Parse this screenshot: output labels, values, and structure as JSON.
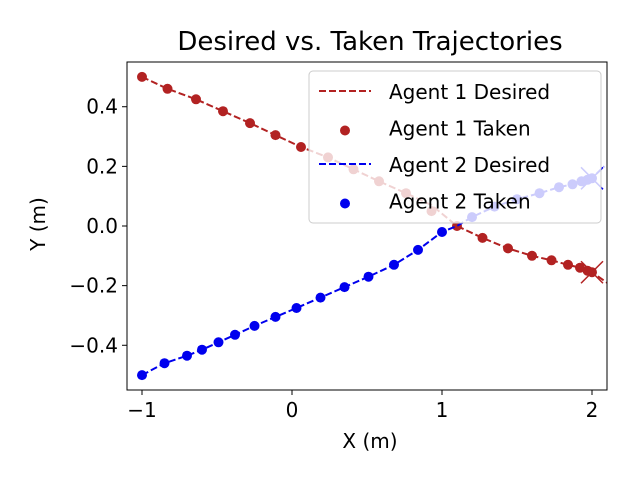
{
  "chart_data": {
    "type": "line",
    "title": "Desired vs. Taken Trajectories",
    "xlabel": "X (m)",
    "ylabel": "Y (m)",
    "xlim": [
      -1.1,
      2.1
    ],
    "ylim": [
      -0.55,
      0.55
    ],
    "xticks": [
      -1,
      0,
      1,
      2
    ],
    "yticks": [
      -0.4,
      -0.2,
      0.0,
      0.2,
      0.4
    ],
    "xtick_labels": [
      "−1",
      "0",
      "1",
      "2"
    ],
    "ytick_labels": [
      "−0.4",
      "−0.2",
      "0.0",
      "0.2",
      "0.4"
    ],
    "grid": false,
    "legend_position": "top-right",
    "colors": {
      "agent1": "#b22222",
      "agent2": "#0000ee"
    },
    "series": [
      {
        "name": "Agent 1 Desired",
        "kind": "dashed-line",
        "color": "#b22222",
        "x": [
          -1.0,
          -0.83,
          -0.64,
          -0.46,
          -0.28,
          -0.11,
          0.06,
          0.24,
          0.41,
          0.58,
          0.76,
          0.93,
          1.1,
          1.27,
          1.44,
          1.6,
          1.73,
          1.84,
          1.92,
          1.97,
          2.0,
          2.1
        ],
        "y": [
          0.5,
          0.46,
          0.425,
          0.385,
          0.345,
          0.305,
          0.265,
          0.23,
          0.19,
          0.15,
          0.11,
          0.07,
          0.0,
          -0.04,
          -0.075,
          -0.1,
          -0.115,
          -0.13,
          -0.14,
          -0.15,
          -0.155,
          -0.19
        ]
      },
      {
        "name": "Agent 1 Taken",
        "kind": "markers",
        "color": "#b22222",
        "x": [
          -1.0,
          -0.83,
          -0.64,
          -0.46,
          -0.28,
          -0.11,
          0.06,
          0.24,
          0.41,
          0.58,
          0.76,
          0.93,
          1.1,
          1.27,
          1.44,
          1.6,
          1.73,
          1.84,
          1.92,
          1.97,
          2.0
        ],
        "y": [
          0.5,
          0.46,
          0.425,
          0.385,
          0.345,
          0.305,
          0.265,
          0.23,
          0.19,
          0.15,
          0.11,
          0.05,
          0.0,
          -0.04,
          -0.075,
          -0.1,
          -0.115,
          -0.13,
          -0.14,
          -0.15,
          -0.155
        ]
      },
      {
        "name": "Agent 2 Desired",
        "kind": "dashed-line",
        "color": "#0000ee",
        "x": [
          -1.0,
          -0.85,
          -0.7,
          -0.6,
          -0.49,
          -0.38,
          -0.25,
          -0.11,
          0.03,
          0.19,
          0.35,
          0.51,
          0.68,
          0.84,
          1.0,
          1.1,
          1.2,
          1.35,
          1.5,
          1.65,
          1.78,
          1.87,
          1.93,
          1.97,
          2.0,
          2.08
        ],
        "y": [
          -0.5,
          -0.46,
          -0.435,
          -0.415,
          -0.39,
          -0.365,
          -0.335,
          -0.305,
          -0.275,
          -0.24,
          -0.205,
          -0.17,
          -0.13,
          -0.08,
          -0.02,
          0.0,
          0.03,
          0.065,
          0.09,
          0.11,
          0.13,
          0.14,
          0.15,
          0.155,
          0.16,
          0.2
        ]
      },
      {
        "name": "Agent 2 Taken",
        "kind": "markers",
        "color": "#0000ee",
        "x": [
          -1.0,
          -0.85,
          -0.7,
          -0.6,
          -0.49,
          -0.38,
          -0.25,
          -0.11,
          0.03,
          0.19,
          0.35,
          0.51,
          0.68,
          0.84,
          1.0,
          1.2,
          1.35,
          1.5,
          1.65,
          1.78,
          1.87,
          1.93,
          1.97,
          2.0
        ],
        "y": [
          -0.5,
          -0.46,
          -0.435,
          -0.415,
          -0.39,
          -0.365,
          -0.335,
          -0.305,
          -0.275,
          -0.24,
          -0.205,
          -0.17,
          -0.13,
          -0.08,
          -0.02,
          0.03,
          0.065,
          0.09,
          0.11,
          0.13,
          0.14,
          0.15,
          0.155,
          0.16
        ]
      }
    ],
    "end_markers": [
      {
        "series": "Agent 1",
        "marker": "x",
        "color": "#b22222",
        "x": 2.0,
        "y": -0.155
      },
      {
        "series": "Agent 2",
        "marker": "x",
        "color": "#0000ee",
        "x": 2.0,
        "y": 0.16
      }
    ]
  }
}
